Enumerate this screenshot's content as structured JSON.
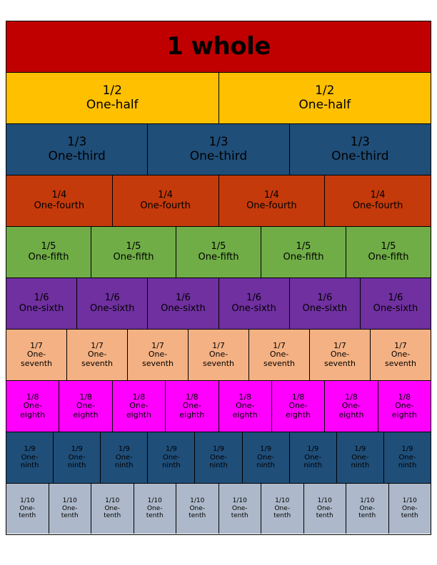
{
  "whole": {
    "label": "1 whole"
  },
  "rows": [
    {
      "frac": "1/2",
      "name": "One-half",
      "count": 2,
      "color": "#FFC000"
    },
    {
      "frac": "1/3",
      "name": "One-third",
      "count": 3,
      "color": "#1F4E79"
    },
    {
      "frac": "1/4",
      "name": "One-fourth",
      "count": 4,
      "color": "#C53A0A"
    },
    {
      "frac": "1/5",
      "name": "One-fifth",
      "count": 5,
      "color": "#70AD47"
    },
    {
      "frac": "1/6",
      "name": "One-sixth",
      "count": 6,
      "color": "#7030A0"
    },
    {
      "frac": "1/7",
      "name": "One-seventh",
      "name_lines": [
        "One-",
        "seventh"
      ],
      "count": 7,
      "color": "#F4B183"
    },
    {
      "frac": "1/8",
      "name": "One-eighth",
      "name_lines": [
        "One-",
        "eighth"
      ],
      "count": 8,
      "color": "#FF00FF"
    },
    {
      "frac": "1/9",
      "name": "One-ninth",
      "name_lines": [
        "One-",
        "ninth"
      ],
      "count": 9,
      "color": "#1F4E79"
    },
    {
      "frac": "1/10",
      "name": "One-tenth",
      "name_lines": [
        "One-",
        "tenth"
      ],
      "count": 10,
      "color": "#ADB9CA"
    }
  ],
  "whole_color": "#C00000"
}
